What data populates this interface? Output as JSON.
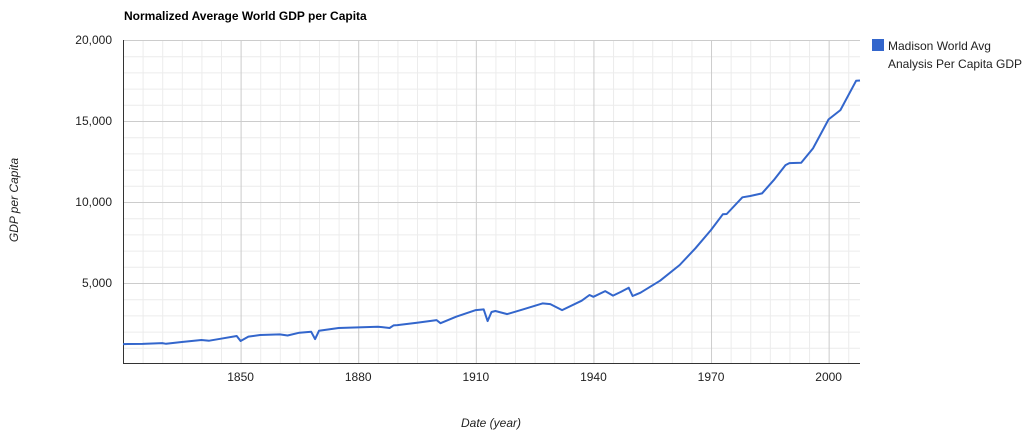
{
  "chart_data": {
    "type": "line",
    "title": "Normalized Average World GDP per Capita",
    "xlabel": "Date (year)",
    "ylabel": "GDP per Capita",
    "xlim": [
      1820,
      2008
    ],
    "ylim": [
      0,
      20000
    ],
    "x_ticks": [
      1850,
      1880,
      1910,
      1940,
      1970,
      2000
    ],
    "x_tick_labels": [
      "1850",
      "1880",
      "1910",
      "1940",
      "1970",
      "2000"
    ],
    "y_ticks": [
      5000,
      10000,
      15000,
      20000
    ],
    "y_tick_labels": [
      "5,000",
      "10,000",
      "15,000",
      "20,000"
    ],
    "grid": true,
    "legend": "right",
    "series": [
      {
        "name": "Madison World Avg Analysis Per Capita GDP",
        "color": "#3366cc",
        "x": [
          1820,
          1825,
          1830,
          1831,
          1835,
          1840,
          1842,
          1845,
          1849,
          1850,
          1852,
          1855,
          1860,
          1862,
          1865,
          1868,
          1869,
          1870,
          1875,
          1880,
          1885,
          1888,
          1889,
          1890,
          1895,
          1900,
          1901,
          1905,
          1910,
          1912,
          1913,
          1914,
          1915,
          1918,
          1922,
          1927,
          1929,
          1932,
          1937,
          1939,
          1940,
          1943,
          1945,
          1947,
          1949,
          1950,
          1952,
          1957,
          1962,
          1966,
          1970,
          1973,
          1974,
          1978,
          1980,
          1983,
          1986,
          1989,
          1990,
          1993,
          1996,
          2000,
          2003,
          2007,
          2008
        ],
        "y": [
          1230,
          1240,
          1290,
          1250,
          1360,
          1480,
          1440,
          1560,
          1730,
          1420,
          1690,
          1790,
          1830,
          1760,
          1930,
          1990,
          1540,
          2050,
          2220,
          2260,
          2300,
          2220,
          2380,
          2400,
          2550,
          2710,
          2520,
          2920,
          3330,
          3370,
          2650,
          3210,
          3270,
          3080,
          3370,
          3740,
          3700,
          3330,
          3910,
          4260,
          4150,
          4500,
          4220,
          4450,
          4710,
          4200,
          4400,
          5140,
          6110,
          7140,
          8270,
          9240,
          9260,
          10290,
          10370,
          10530,
          11350,
          12280,
          12400,
          12420,
          13310,
          15100,
          15670,
          17480,
          17500
        ]
      }
    ]
  }
}
